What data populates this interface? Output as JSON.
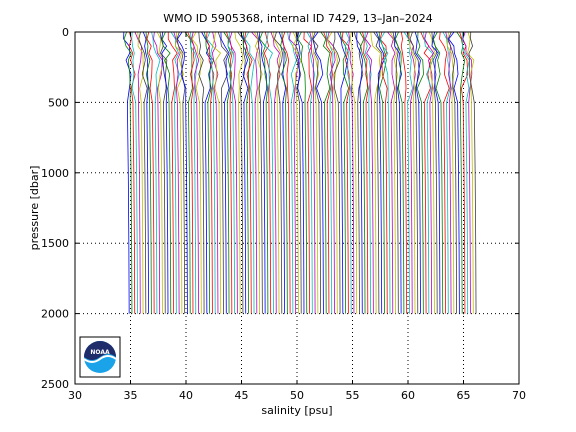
{
  "chart_data": {
    "type": "line",
    "title": "WMO ID 5905368, internal ID 7429, 13–Jan–2024",
    "xlabel": "salinity [psu]",
    "ylabel": "pressure [dbar]",
    "xlim": [
      30,
      70
    ],
    "ylim": [
      2500,
      0
    ],
    "y_reversed": true,
    "x_ticks": [
      30,
      35,
      40,
      45,
      50,
      55,
      60,
      65,
      70
    ],
    "y_ticks": [
      0,
      500,
      1000,
      1500,
      2000,
      2500
    ],
    "x_tick_labels": [
      "30",
      "35",
      "40",
      "45",
      "50",
      "55",
      "60",
      "65",
      "70"
    ],
    "y_tick_labels": [
      "0",
      "500",
      "1000",
      "1500",
      "2000",
      "2500"
    ],
    "grid": "dotted",
    "profile_spacing_psu": 0.25,
    "profile_count": 126,
    "profile_bottom_pressure": 2000,
    "profile_template": {
      "pressure": [
        0,
        50,
        100,
        150,
        200,
        300,
        400,
        500,
        700,
        1000,
        1500,
        2000
      ],
      "salinity": [
        34.4,
        34.45,
        34.6,
        34.75,
        34.8,
        34.78,
        34.75,
        34.72,
        34.75,
        34.8,
        34.85,
        34.88
      ]
    },
    "series_colors": [
      "#0000ff",
      "#008000",
      "#ff0000",
      "#00bfbf",
      "#bf00bf",
      "#bfbf00",
      "#404040"
    ]
  },
  "logo": {
    "text": "NOAA",
    "colors": {
      "top": "#1f2d6b",
      "bottom": "#1aa3e8",
      "frame": "#000000"
    }
  }
}
